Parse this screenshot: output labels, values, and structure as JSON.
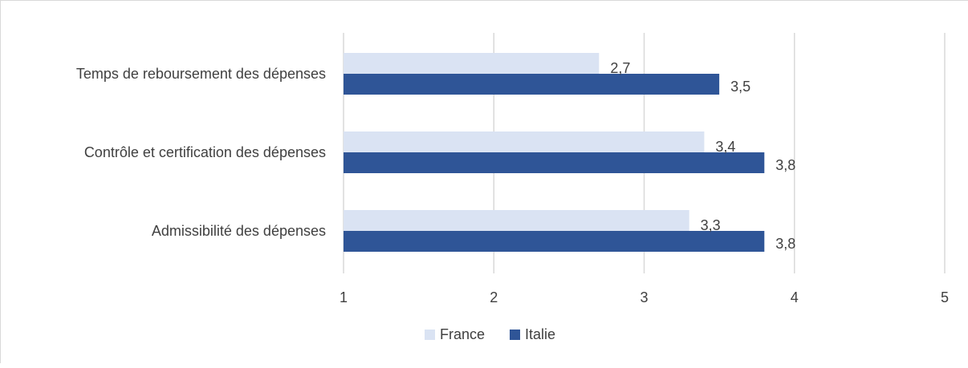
{
  "chart_data": {
    "type": "bar",
    "orientation": "horizontal",
    "categories": [
      "Temps de reboursement des dépenses",
      "Contrôle et certification des dépenses",
      "Admissibilité des dépenses"
    ],
    "series": [
      {
        "name": "France",
        "values": [
          2.7,
          3.4,
          3.3
        ],
        "labels": [
          "2,7",
          "3,4",
          "3,3"
        ],
        "color": "#dae3f3"
      },
      {
        "name": "Italie",
        "values": [
          3.5,
          3.8,
          3.8
        ],
        "labels": [
          "3,5",
          "3,8",
          "3,8"
        ],
        "color": "#2f5597"
      }
    ],
    "xlim": [
      1,
      5
    ],
    "x_ticks": [
      "1",
      "2",
      "3",
      "4",
      "5"
    ],
    "grid": "vertical",
    "legend": "bottom-center",
    "title": "",
    "xlabel": "",
    "ylabel": ""
  },
  "colors": {
    "gridline": "#d9d9d9",
    "text": "#404040"
  }
}
